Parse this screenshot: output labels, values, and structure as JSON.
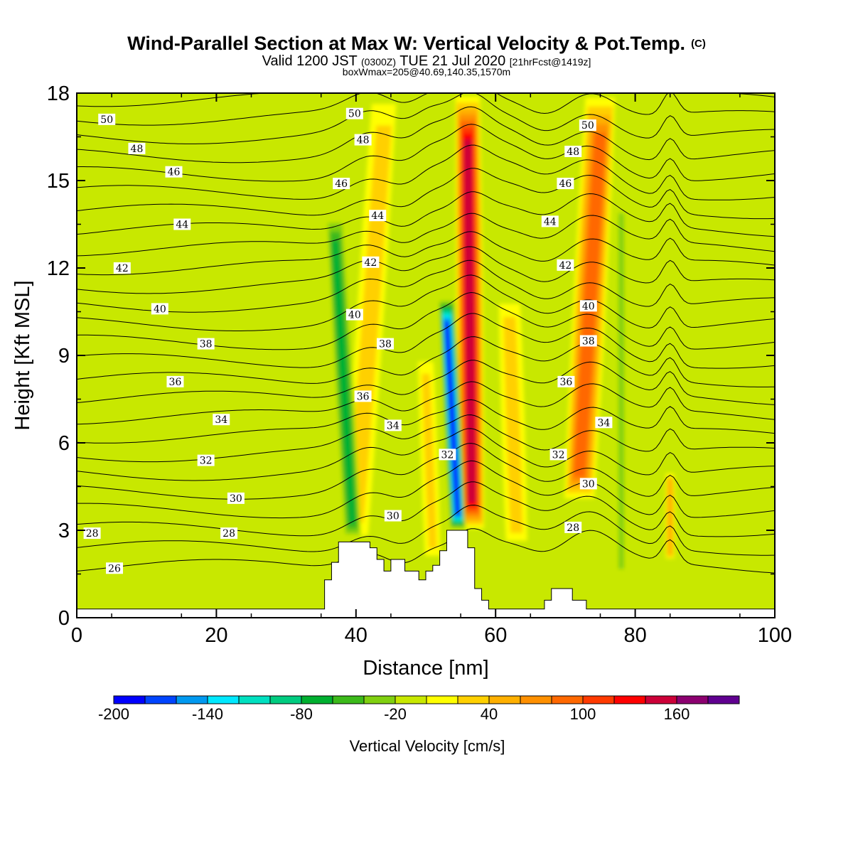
{
  "title": {
    "main": "Wind-Parallel Section at Max W: Vertical Velocity & Pot.Temp.",
    "copyright": "(C)",
    "valid_prefix": "Valid 1200 JST",
    "valid_utc": "(0300Z)",
    "valid_date": "TUE 21 Jul 2020",
    "fcst": "[21hrFcst@1419z]",
    "boxinfo": "boxWmax=205@40.69,140.35,1570m"
  },
  "chart_data": {
    "type": "heatmap",
    "xlabel": "Distance [nm]",
    "ylabel": "Height [Kft MSL]",
    "xlim": [
      0,
      100
    ],
    "ylim": [
      0,
      18
    ],
    "x_ticks": [
      "0",
      "20",
      "40",
      "60",
      "80",
      "100"
    ],
    "y_ticks": [
      "0",
      "3",
      "6",
      "9",
      "12",
      "15",
      "18"
    ],
    "colorbar": {
      "label": "Vertical Velocity [cm/s]",
      "range": [
        -200,
        200
      ],
      "step": 20,
      "tick_labels": [
        "-200",
        "-140",
        "-80",
        "-20",
        "40",
        "100",
        "160"
      ],
      "tick_values": [
        -200,
        -140,
        -80,
        -20,
        40,
        100,
        160
      ],
      "colors": [
        "#0000ff",
        "#0044ff",
        "#0099f0",
        "#00e8ff",
        "#00e0c0",
        "#00cc80",
        "#00b030",
        "#3cba1a",
        "#80d010",
        "#c8e800",
        "#ffff00",
        "#ffd000",
        "#ffb000",
        "#ff9000",
        "#ff6800",
        "#ff3a00",
        "#ff0000",
        "#cc0038",
        "#8c0070",
        "#600090"
      ]
    },
    "background_w": -5,
    "updraft_plumes": [
      {
        "x0": 40,
        "x1": 44,
        "y_bottom": 2.6,
        "y_top": 18,
        "peak_w": 50,
        "width_nm": 1.8
      },
      {
        "x0": 56.6,
        "x1": 56,
        "y_bottom": 3.0,
        "y_top": 18,
        "peak_w": 170,
        "width_nm": 1.6
      },
      {
        "x0": 72,
        "x1": 75,
        "y_bottom": 4.0,
        "y_top": 18,
        "peak_w": 110,
        "width_nm": 2.0
      },
      {
        "x0": 63,
        "x1": 62,
        "y_bottom": 2.5,
        "y_top": 11,
        "peak_w": 45,
        "width_nm": 1.6
      },
      {
        "x0": 51,
        "x1": 50,
        "y_bottom": 2.0,
        "y_top": 9,
        "peak_w": 40,
        "width_nm": 1.2
      },
      {
        "x0": 85,
        "x1": 85,
        "y_bottom": 2.0,
        "y_top": 5,
        "peak_w": 70,
        "width_nm": 0.6
      }
    ],
    "downdraft_plumes": [
      {
        "x0": 39.5,
        "x1": 37,
        "y_bottom": 2.6,
        "y_top": 14,
        "peak_w": -90,
        "width_nm": 1.2
      },
      {
        "x0": 54.6,
        "x1": 53,
        "y_bottom": 3.0,
        "y_top": 11,
        "peak_w": -200,
        "width_nm": 1.0
      },
      {
        "x0": 78,
        "x1": 78,
        "y_bottom": 1.0,
        "y_top": 15,
        "peak_w": -45,
        "width_nm": 0.7
      }
    ],
    "terrain": [
      [
        0,
        0.3
      ],
      [
        35.5,
        0.3
      ],
      [
        35.5,
        1.3
      ],
      [
        36.5,
        1.3
      ],
      [
        36.5,
        1.9
      ],
      [
        37.5,
        1.9
      ],
      [
        37.5,
        2.6
      ],
      [
        42,
        2.6
      ],
      [
        42,
        2.4
      ],
      [
        43,
        2.4
      ],
      [
        43,
        2.0
      ],
      [
        44,
        2.0
      ],
      [
        44,
        1.6
      ],
      [
        45,
        1.6
      ],
      [
        45,
        2.0
      ],
      [
        47,
        2.0
      ],
      [
        47,
        1.6
      ],
      [
        49,
        1.6
      ],
      [
        49,
        1.3
      ],
      [
        50,
        1.3
      ],
      [
        50,
        1.6
      ],
      [
        51,
        1.6
      ],
      [
        51,
        1.8
      ],
      [
        52,
        1.8
      ],
      [
        52,
        2.3
      ],
      [
        53,
        2.3
      ],
      [
        53,
        3.0
      ],
      [
        56,
        3.0
      ],
      [
        56,
        2.4
      ],
      [
        57,
        2.4
      ],
      [
        57,
        1.0
      ],
      [
        58,
        1.0
      ],
      [
        58,
        0.6
      ],
      [
        59,
        0.6
      ],
      [
        59,
        0.3
      ],
      [
        67,
        0.3
      ],
      [
        67,
        0.6
      ],
      [
        68,
        0.6
      ],
      [
        68,
        1.0
      ],
      [
        71,
        1.0
      ],
      [
        71,
        0.6
      ],
      [
        73,
        0.6
      ],
      [
        73,
        0.3
      ],
      [
        100,
        0.3
      ]
    ],
    "theta_contours": {
      "values": [
        26,
        27,
        28,
        29,
        30,
        31,
        32,
        33,
        34,
        35,
        36,
        37,
        38,
        39,
        40,
        41,
        42,
        43,
        44,
        45,
        46,
        47,
        48,
        49,
        50,
        51
      ]
    },
    "contour_labels": [
      {
        "text": "50",
        "x": 4.3,
        "y": 17.1
      },
      {
        "text": "48",
        "x": 8.6,
        "y": 16.1
      },
      {
        "text": "46",
        "x": 13.9,
        "y": 15.3
      },
      {
        "text": "44",
        "x": 15.1,
        "y": 13.5
      },
      {
        "text": "42",
        "x": 6.5,
        "y": 12.0
      },
      {
        "text": "40",
        "x": 11.9,
        "y": 10.6
      },
      {
        "text": "38",
        "x": 18.5,
        "y": 9.4
      },
      {
        "text": "36",
        "x": 14.1,
        "y": 8.1
      },
      {
        "text": "34",
        "x": 20.7,
        "y": 6.8
      },
      {
        "text": "32",
        "x": 18.5,
        "y": 5.4
      },
      {
        "text": "30",
        "x": 22.8,
        "y": 4.1
      },
      {
        "text": "28",
        "x": 2.2,
        "y": 2.9
      },
      {
        "text": "28",
        "x": 21.8,
        "y": 2.9
      },
      {
        "text": "26",
        "x": 5.4,
        "y": 1.7
      },
      {
        "text": "50",
        "x": 39.8,
        "y": 17.3
      },
      {
        "text": "48",
        "x": 41.0,
        "y": 16.4
      },
      {
        "text": "46",
        "x": 37.9,
        "y": 14.9
      },
      {
        "text": "44",
        "x": 43.1,
        "y": 13.8
      },
      {
        "text": "42",
        "x": 42.1,
        "y": 12.2
      },
      {
        "text": "40",
        "x": 39.8,
        "y": 10.4
      },
      {
        "text": "38",
        "x": 44.2,
        "y": 9.4
      },
      {
        "text": "36",
        "x": 41.0,
        "y": 7.6
      },
      {
        "text": "34",
        "x": 45.3,
        "y": 6.6
      },
      {
        "text": "32",
        "x": 53.1,
        "y": 5.6
      },
      {
        "text": "30",
        "x": 45.3,
        "y": 3.5
      },
      {
        "text": "50",
        "x": 73.2,
        "y": 16.9
      },
      {
        "text": "48",
        "x": 71.1,
        "y": 16.0
      },
      {
        "text": "46",
        "x": 70.0,
        "y": 14.9
      },
      {
        "text": "44",
        "x": 67.8,
        "y": 13.6
      },
      {
        "text": "42",
        "x": 70.0,
        "y": 12.1
      },
      {
        "text": "40",
        "x": 73.3,
        "y": 10.7
      },
      {
        "text": "38",
        "x": 73.3,
        "y": 9.5
      },
      {
        "text": "36",
        "x": 70.1,
        "y": 8.1
      },
      {
        "text": "34",
        "x": 75.5,
        "y": 6.7
      },
      {
        "text": "32",
        "x": 69.0,
        "y": 5.6
      },
      {
        "text": "30",
        "x": 73.3,
        "y": 4.6
      },
      {
        "text": "28",
        "x": 71.1,
        "y": 3.1
      }
    ]
  }
}
